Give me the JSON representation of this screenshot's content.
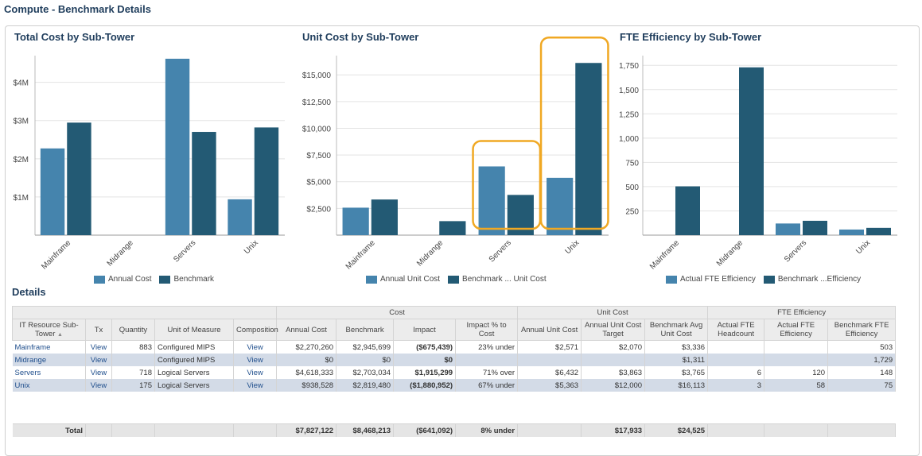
{
  "page_title": "Compute - Benchmark Details",
  "colors": {
    "light": "#4584ad",
    "dark": "#235a74",
    "highlight": "#f0a823"
  },
  "chart_data": [
    {
      "type": "bar",
      "title": "Total Cost by Sub-Tower",
      "categories": [
        "Mainframe",
        "Midrange",
        "Servers",
        "Unix"
      ],
      "series": [
        {
          "name": "Annual Cost",
          "values": [
            2270260,
            0,
            4618333,
            938528
          ]
        },
        {
          "name": "Benchmark",
          "values": [
            2945699,
            0,
            2703034,
            2819480
          ]
        }
      ],
      "yticks": [
        {
          "v": 1000000,
          "label": "$1M"
        },
        {
          "v": 2000000,
          "label": "$2M"
        },
        {
          "v": 3000000,
          "label": "$3M"
        },
        {
          "v": 4000000,
          "label": "$4M"
        }
      ],
      "ylim": [
        0,
        4700000
      ],
      "grid": true
    },
    {
      "type": "bar",
      "title": "Unit Cost by Sub-Tower",
      "categories": [
        "Mainframe",
        "Midrange",
        "Servers",
        "Unix"
      ],
      "series": [
        {
          "name": "Annual Unit Cost",
          "values": [
            2571,
            0,
            6432,
            5363
          ]
        },
        {
          "name": "Benchmark ... Unit Cost",
          "values": [
            3336,
            1311,
            3765,
            16113
          ]
        }
      ],
      "yticks": [
        {
          "v": 2500,
          "label": "$2,500"
        },
        {
          "v": 5000,
          "label": "$5,000"
        },
        {
          "v": 7500,
          "label": "$7,500"
        },
        {
          "v": 10000,
          "label": "$10,000"
        },
        {
          "v": 12500,
          "label": "$12,500"
        },
        {
          "v": 15000,
          "label": "$15,000"
        }
      ],
      "ylim": [
        0,
        16800
      ],
      "grid": true,
      "highlighted_categories": [
        "Servers",
        "Unix"
      ]
    },
    {
      "type": "bar",
      "title": "FTE Efficiency by Sub-Tower",
      "categories": [
        "Mainframe",
        "Midrange",
        "Servers",
        "Unix"
      ],
      "series": [
        {
          "name": "Actual FTE Efficiency",
          "values": [
            0,
            0,
            120,
            58
          ]
        },
        {
          "name": "Benchmark ...Efficiency",
          "values": [
            503,
            1729,
            148,
            75
          ]
        }
      ],
      "yticks": [
        {
          "v": 250,
          "label": "250"
        },
        {
          "v": 500,
          "label": "500"
        },
        {
          "v": 750,
          "label": "750"
        },
        {
          "v": 1000,
          "label": "1,000"
        },
        {
          "v": 1250,
          "label": "1,250"
        },
        {
          "v": 1500,
          "label": "1,500"
        },
        {
          "v": 1750,
          "label": "1,750"
        }
      ],
      "ylim": [
        0,
        1850
      ],
      "grid": true
    }
  ],
  "details": {
    "title": "Details",
    "group_headers": {
      "cost": "Cost",
      "unit_cost": "Unit Cost",
      "fte": "FTE Efficiency"
    },
    "columns": [
      "IT Resource Sub-Tower",
      "Tx",
      "Quantity",
      "Unit of Measure",
      "Composition",
      "Annual Cost",
      "Benchmark",
      "Impact",
      "Impact % to Cost",
      "Annual Unit Cost",
      "Annual Unit Cost Target",
      "Benchmark Avg Unit Cost",
      "Actual FTE Headcount",
      "Actual FTE Efficiency",
      "Benchmark FTE Efficiency"
    ],
    "sort_indicator": "▲",
    "rows": [
      [
        "Mainframe",
        "View",
        "883",
        "Configured MIPS",
        "View",
        "$2,270,260",
        "$2,945,699",
        "($675,439)",
        "23% under",
        "$2,571",
        "$2,070",
        "$3,336",
        "",
        "",
        "503"
      ],
      [
        "Midrange",
        "View",
        "",
        "Configured MIPS",
        "View",
        "$0",
        "$0",
        "$0",
        "",
        "",
        "",
        "$1,311",
        "",
        "",
        "1,729"
      ],
      [
        "Servers",
        "View",
        "718",
        "Logical Servers",
        "View",
        "$4,618,333",
        "$2,703,034",
        "$1,915,299",
        "71% over",
        "$6,432",
        "$3,863",
        "$3,765",
        "6",
        "120",
        "148"
      ],
      [
        "Unix",
        "View",
        "175",
        "Logical Servers",
        "View",
        "$938,528",
        "$2,819,480",
        "($1,880,952)",
        "67% under",
        "$5,363",
        "$12,000",
        "$16,113",
        "3",
        "58",
        "75"
      ]
    ],
    "total": [
      "Total",
      "",
      "",
      "",
      "",
      "$7,827,122",
      "$8,468,213",
      "($641,092)",
      "8% under",
      "",
      "$17,933",
      "$24,525",
      "",
      "",
      ""
    ]
  }
}
